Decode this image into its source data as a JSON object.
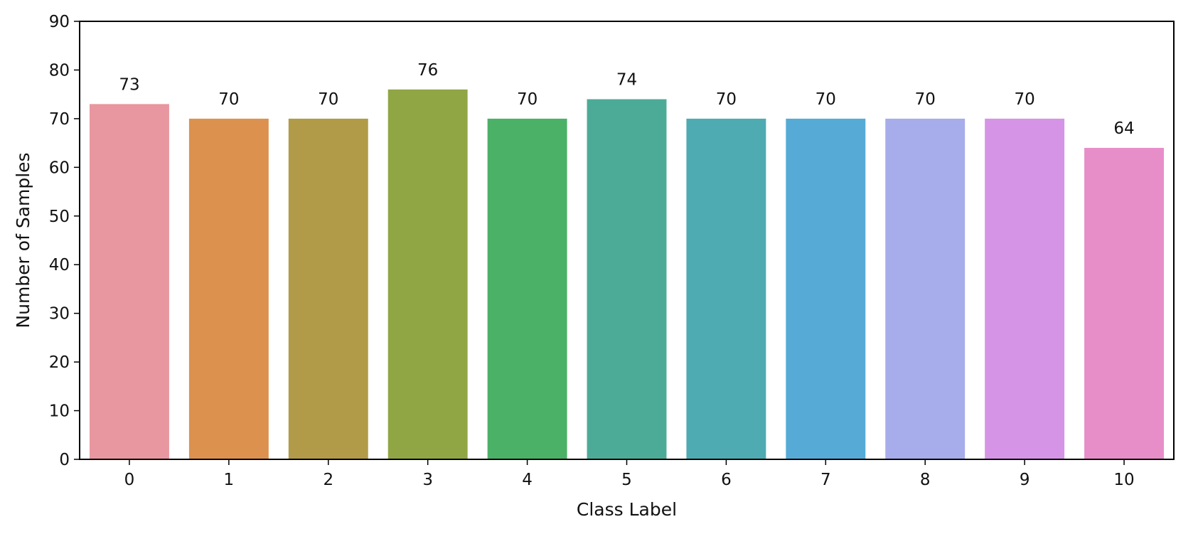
{
  "chart_data": {
    "type": "bar",
    "xlabel": "Class Label",
    "ylabel": "Number of Samples",
    "ylim": [
      0,
      90
    ],
    "yticks": [
      0,
      10,
      20,
      30,
      40,
      50,
      60,
      70,
      80,
      90
    ],
    "grid": false,
    "legend": "none",
    "categories": [
      "0",
      "1",
      "2",
      "3",
      "4",
      "5",
      "6",
      "7",
      "8",
      "9",
      "10"
    ],
    "values": [
      73,
      70,
      70,
      76,
      70,
      74,
      70,
      70,
      70,
      70,
      64
    ],
    "bar_labels": [
      "73",
      "70",
      "70",
      "76",
      "70",
      "74",
      "70",
      "70",
      "70",
      "70",
      "64"
    ],
    "colors": [
      "#e8969f",
      "#dc914f",
      "#b19b48",
      "#90a645",
      "#4bb167",
      "#4cab97",
      "#4eabb2",
      "#55abd5",
      "#a7acea",
      "#d594e6",
      "#e78ec9"
    ]
  }
}
